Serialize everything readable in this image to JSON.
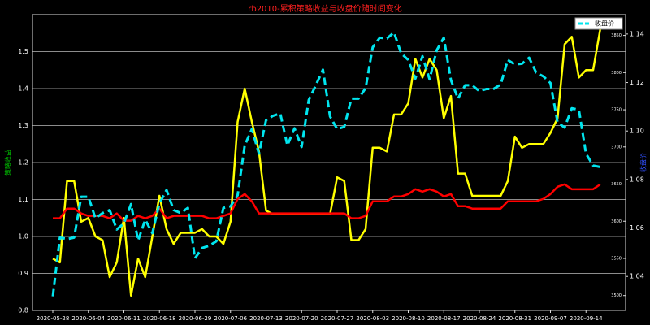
{
  "chart_data": {
    "type": "line",
    "title": "rb2010-累积策略收益与收盘价随时间变化",
    "ylabel": "策略收益",
    "y3label": "收盘价",
    "categories": [
      "2020-05-28",
      null,
      null,
      null,
      null,
      "2020-06-04",
      null,
      null,
      null,
      null,
      "2020-06-11",
      null,
      null,
      null,
      null,
      "2020-06-18",
      null,
      null,
      null,
      null,
      "2020-06-29",
      null,
      null,
      null,
      null,
      "2020-07-06",
      null,
      null,
      null,
      null,
      "2020-07-13",
      null,
      null,
      null,
      null,
      "2020-07-20",
      null,
      null,
      null,
      null,
      "2020-07-27",
      null,
      null,
      null,
      null,
      "2020-08-03",
      null,
      null,
      null,
      null,
      "2020-08-10",
      null,
      null,
      null,
      null,
      "2020-08-17",
      null,
      null,
      null,
      null,
      "2020-08-24",
      null,
      null,
      null,
      null,
      "2020-08-31",
      null,
      null,
      null,
      null,
      "2020-09-07",
      null,
      null,
      null,
      null,
      "2020-09-14",
      null,
      null
    ],
    "ylim": [
      0.8,
      1.6
    ],
    "yticks": [
      0.8,
      0.9,
      {
        "value": 1.0,
        "label": "1.0"
      },
      1.1,
      1.2,
      1.3,
      1.4,
      1.5
    ],
    "y2lim": [
      1.026,
      1.148
    ],
    "y2ticks": [
      1.04,
      1.06,
      1.08,
      {
        "value": 1.1,
        "label": "1.10"
      },
      1.12,
      1.14
    ],
    "y3lim": [
      3480,
      3878
    ],
    "y3ticks": [
      3500,
      3550,
      3600,
      3650,
      3700,
      3750,
      3800,
      3850
    ],
    "grid": true,
    "legend": "upper right",
    "series": [
      {
        "color": "#ffff00",
        "axis": "y",
        "values": [
          0.94,
          0.93,
          1.15,
          1.15,
          1.04,
          1.05,
          1.0,
          0.99,
          0.89,
          0.93,
          1.05,
          0.84,
          0.94,
          0.89,
          1.0,
          1.11,
          1.02,
          0.98,
          1.01,
          1.01,
          1.01,
          1.02,
          1.0,
          1.0,
          0.98,
          1.04,
          1.31,
          1.4,
          1.31,
          1.23,
          1.07,
          1.06,
          1.06,
          1.06,
          1.06,
          1.06,
          1.06,
          1.06,
          1.06,
          1.06,
          1.16,
          1.15,
          0.99,
          0.99,
          1.02,
          1.24,
          1.24,
          1.23,
          1.33,
          1.33,
          1.36,
          1.48,
          1.43,
          1.48,
          1.45,
          1.32,
          1.38,
          1.17,
          1.17,
          1.11,
          1.11,
          1.11,
          1.11,
          1.11,
          1.15,
          1.27,
          1.24,
          1.25,
          1.25,
          1.25,
          1.28,
          1.32,
          1.52,
          1.54,
          1.43,
          1.45,
          1.45,
          1.56
        ]
      },
      {
        "color": "#ff0000",
        "axis": "y2",
        "values": [
          1.064,
          1.064,
          1.068,
          1.068,
          1.066,
          1.065,
          1.065,
          1.065,
          1.064,
          1.066,
          1.063,
          1.063,
          1.065,
          1.064,
          1.065,
          1.068,
          1.064,
          1.065,
          1.065,
          1.065,
          1.065,
          1.065,
          1.064,
          1.064,
          1.065,
          1.066,
          1.072,
          1.074,
          1.071,
          1.066,
          1.066,
          1.066,
          1.066,
          1.066,
          1.066,
          1.066,
          1.066,
          1.066,
          1.066,
          1.066,
          1.066,
          1.066,
          1.064,
          1.064,
          1.065,
          1.071,
          1.071,
          1.071,
          1.073,
          1.073,
          1.074,
          1.076,
          1.075,
          1.076,
          1.075,
          1.073,
          1.074,
          1.069,
          1.069,
          1.068,
          1.068,
          1.068,
          1.068,
          1.068,
          1.071,
          1.071,
          1.071,
          1.071,
          1.071,
          1.072,
          1.074,
          1.077,
          1.078,
          1.076,
          1.076,
          1.076,
          1.076,
          1.078
        ]
      },
      {
        "name": "收盘价",
        "color": "#00e5ee",
        "axis": "y3",
        "values": [
          3499,
          3578,
          3576,
          3578,
          3633,
          3633,
          3604,
          3611,
          3615,
          3589,
          3597,
          3623,
          3574,
          3602,
          3584,
          3624,
          3642,
          3615,
          3611,
          3618,
          3550,
          3564,
          3567,
          3573,
          3618,
          3620,
          3635,
          3702,
          3724,
          3691,
          3736,
          3742,
          3745,
          3702,
          3725,
          3700,
          3763,
          3783,
          3804,
          3741,
          3724,
          3727,
          3765,
          3765,
          3779,
          3834,
          3847,
          3846,
          3854,
          3826,
          3817,
          3792,
          3822,
          3791,
          3830,
          3847,
          3790,
          3765,
          3783,
          3783,
          3775,
          3778,
          3778,
          3784,
          3817,
          3811,
          3812,
          3820,
          3800,
          3795,
          3786,
          3733,
          3726,
          3752,
          3750,
          3691,
          3675,
          3673
        ]
      }
    ]
  }
}
